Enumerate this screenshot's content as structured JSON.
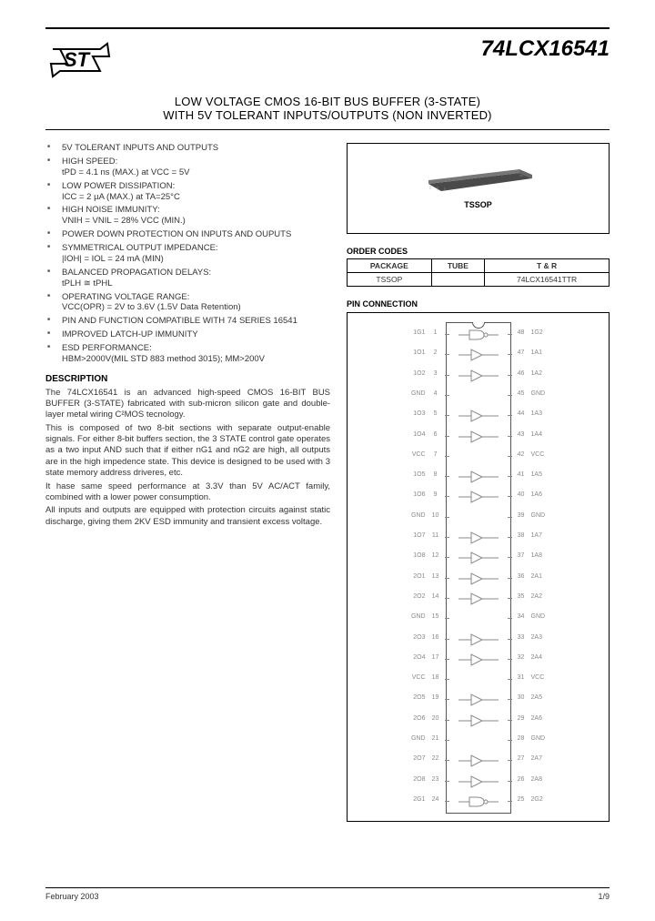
{
  "header": {
    "part_number": "74LCX16541",
    "title_line1": "LOW VOLTAGE CMOS 16-BIT BUS BUFFER (3-STATE)",
    "title_line2": "WITH 5V TOLERANT INPUTS/OUTPUTS (NON INVERTED)"
  },
  "features": [
    {
      "main": "5V TOLERANT INPUTS AND OUTPUTS"
    },
    {
      "main": "HIGH SPEED:",
      "sub": "tPD = 4.1 ns (MAX.) at VCC = 5V"
    },
    {
      "main": "LOW POWER DISSIPATION:",
      "sub": "ICC = 2 µA (MAX.) at TA=25°C"
    },
    {
      "main": "HIGH NOISE IMMUNITY:",
      "sub": "VNIH = VNIL = 28% VCC (MIN.)"
    },
    {
      "main": "POWER DOWN PROTECTION ON INPUTS AND OUPUTS"
    },
    {
      "main": "SYMMETRICAL OUTPUT IMPEDANCE:",
      "sub": "|IOH| = IOL = 24 mA (MIN)"
    },
    {
      "main": "BALANCED PROPAGATION DELAYS:",
      "sub": "tPLH ≅ tPHL"
    },
    {
      "main": "OPERATING VOLTAGE RANGE:",
      "sub": "VCC(OPR) = 2V to 3.6V (1.5V Data Retention)"
    },
    {
      "main": "PIN AND FUNCTION COMPATIBLE WITH 74 SERIES 16541"
    },
    {
      "main": "IMPROVED LATCH-UP IMMUNITY"
    },
    {
      "main": "ESD PERFORMANCE:",
      "sub": "HBM>2000V(MIL STD 883 method 3015); MM>200V"
    }
  ],
  "description": {
    "heading": "DESCRIPTION",
    "p1": "The 74LCX16541 is an advanced high-speed CMOS 16-BIT BUS BUFFER (3-STATE) fabricated with sub-micron silicon gate and double-layer metal wiring C²MOS tecnology.",
    "p2": "This is composed of two 8-bit sections with separate output-enable signals. For either 8-bit buffers section, the 3 STATE control gate operates as a two input AND such that if either nG1 and nG2 are high, all outputs are in the high impedence state. This device is designed to be used with 3 state memory address driveres, etc.",
    "p3": "It hase same speed performance at 3.3V than 5V AC/ACT family, combined with a lower power consumption.",
    "p4": "All inputs and outputs are equipped with protection circuits against static discharge, giving them 2KV ESD immunity and transient excess voltage."
  },
  "package": {
    "label": "TSSOP",
    "chip_fill": "#4a4a4a",
    "chip_edge": "#888"
  },
  "order_codes": {
    "heading": "ORDER CODES",
    "headers": [
      "PACKAGE",
      "TUBE",
      "T & R"
    ],
    "rows": [
      [
        "TSSOP",
        "",
        "74LCX16541TTR"
      ]
    ]
  },
  "pin_connection": {
    "heading": "PIN CONNECTION",
    "left_pins": [
      {
        "n": "1",
        "l": "1G1"
      },
      {
        "n": "2",
        "l": "1O1"
      },
      {
        "n": "3",
        "l": "1O2"
      },
      {
        "n": "4",
        "l": "GND"
      },
      {
        "n": "5",
        "l": "1O3"
      },
      {
        "n": "6",
        "l": "1O4"
      },
      {
        "n": "7",
        "l": "VCC"
      },
      {
        "n": "8",
        "l": "1O5"
      },
      {
        "n": "9",
        "l": "1O6"
      },
      {
        "n": "10",
        "l": "GND"
      },
      {
        "n": "11",
        "l": "1O7"
      },
      {
        "n": "12",
        "l": "1O8"
      },
      {
        "n": "13",
        "l": "2O1"
      },
      {
        "n": "14",
        "l": "2O2"
      },
      {
        "n": "15",
        "l": "GND"
      },
      {
        "n": "16",
        "l": "2O3"
      },
      {
        "n": "17",
        "l": "2O4"
      },
      {
        "n": "18",
        "l": "VCC"
      },
      {
        "n": "19",
        "l": "2O5"
      },
      {
        "n": "20",
        "l": "2O6"
      },
      {
        "n": "21",
        "l": "GND"
      },
      {
        "n": "22",
        "l": "2O7"
      },
      {
        "n": "23",
        "l": "2O8"
      },
      {
        "n": "24",
        "l": "2G1"
      }
    ],
    "right_pins": [
      {
        "n": "48",
        "l": "1G2"
      },
      {
        "n": "47",
        "l": "1A1"
      },
      {
        "n": "46",
        "l": "1A2"
      },
      {
        "n": "45",
        "l": "GND"
      },
      {
        "n": "44",
        "l": "1A3"
      },
      {
        "n": "43",
        "l": "1A4"
      },
      {
        "n": "42",
        "l": "VCC"
      },
      {
        "n": "41",
        "l": "1A5"
      },
      {
        "n": "40",
        "l": "1A6"
      },
      {
        "n": "39",
        "l": "GND"
      },
      {
        "n": "38",
        "l": "1A7"
      },
      {
        "n": "37",
        "l": "1A8"
      },
      {
        "n": "36",
        "l": "2A1"
      },
      {
        "n": "35",
        "l": "2A2"
      },
      {
        "n": "34",
        "l": "GND"
      },
      {
        "n": "33",
        "l": "2A3"
      },
      {
        "n": "32",
        "l": "2A4"
      },
      {
        "n": "31",
        "l": "VCC"
      },
      {
        "n": "30",
        "l": "2A5"
      },
      {
        "n": "29",
        "l": "2A6"
      },
      {
        "n": "28",
        "l": "GND"
      },
      {
        "n": "27",
        "l": "2A7"
      },
      {
        "n": "26",
        "l": "2A8"
      },
      {
        "n": "25",
        "l": "2G2"
      }
    ],
    "buffer_rows": [
      1,
      2,
      4,
      5,
      7,
      8,
      10,
      11,
      12,
      13,
      15,
      16,
      18,
      19,
      21,
      22
    ],
    "gate_rows": [
      0,
      23
    ],
    "row_height": 22.3,
    "line_color": "#888"
  },
  "footer": {
    "date": "February 2003",
    "page": "1/9"
  }
}
